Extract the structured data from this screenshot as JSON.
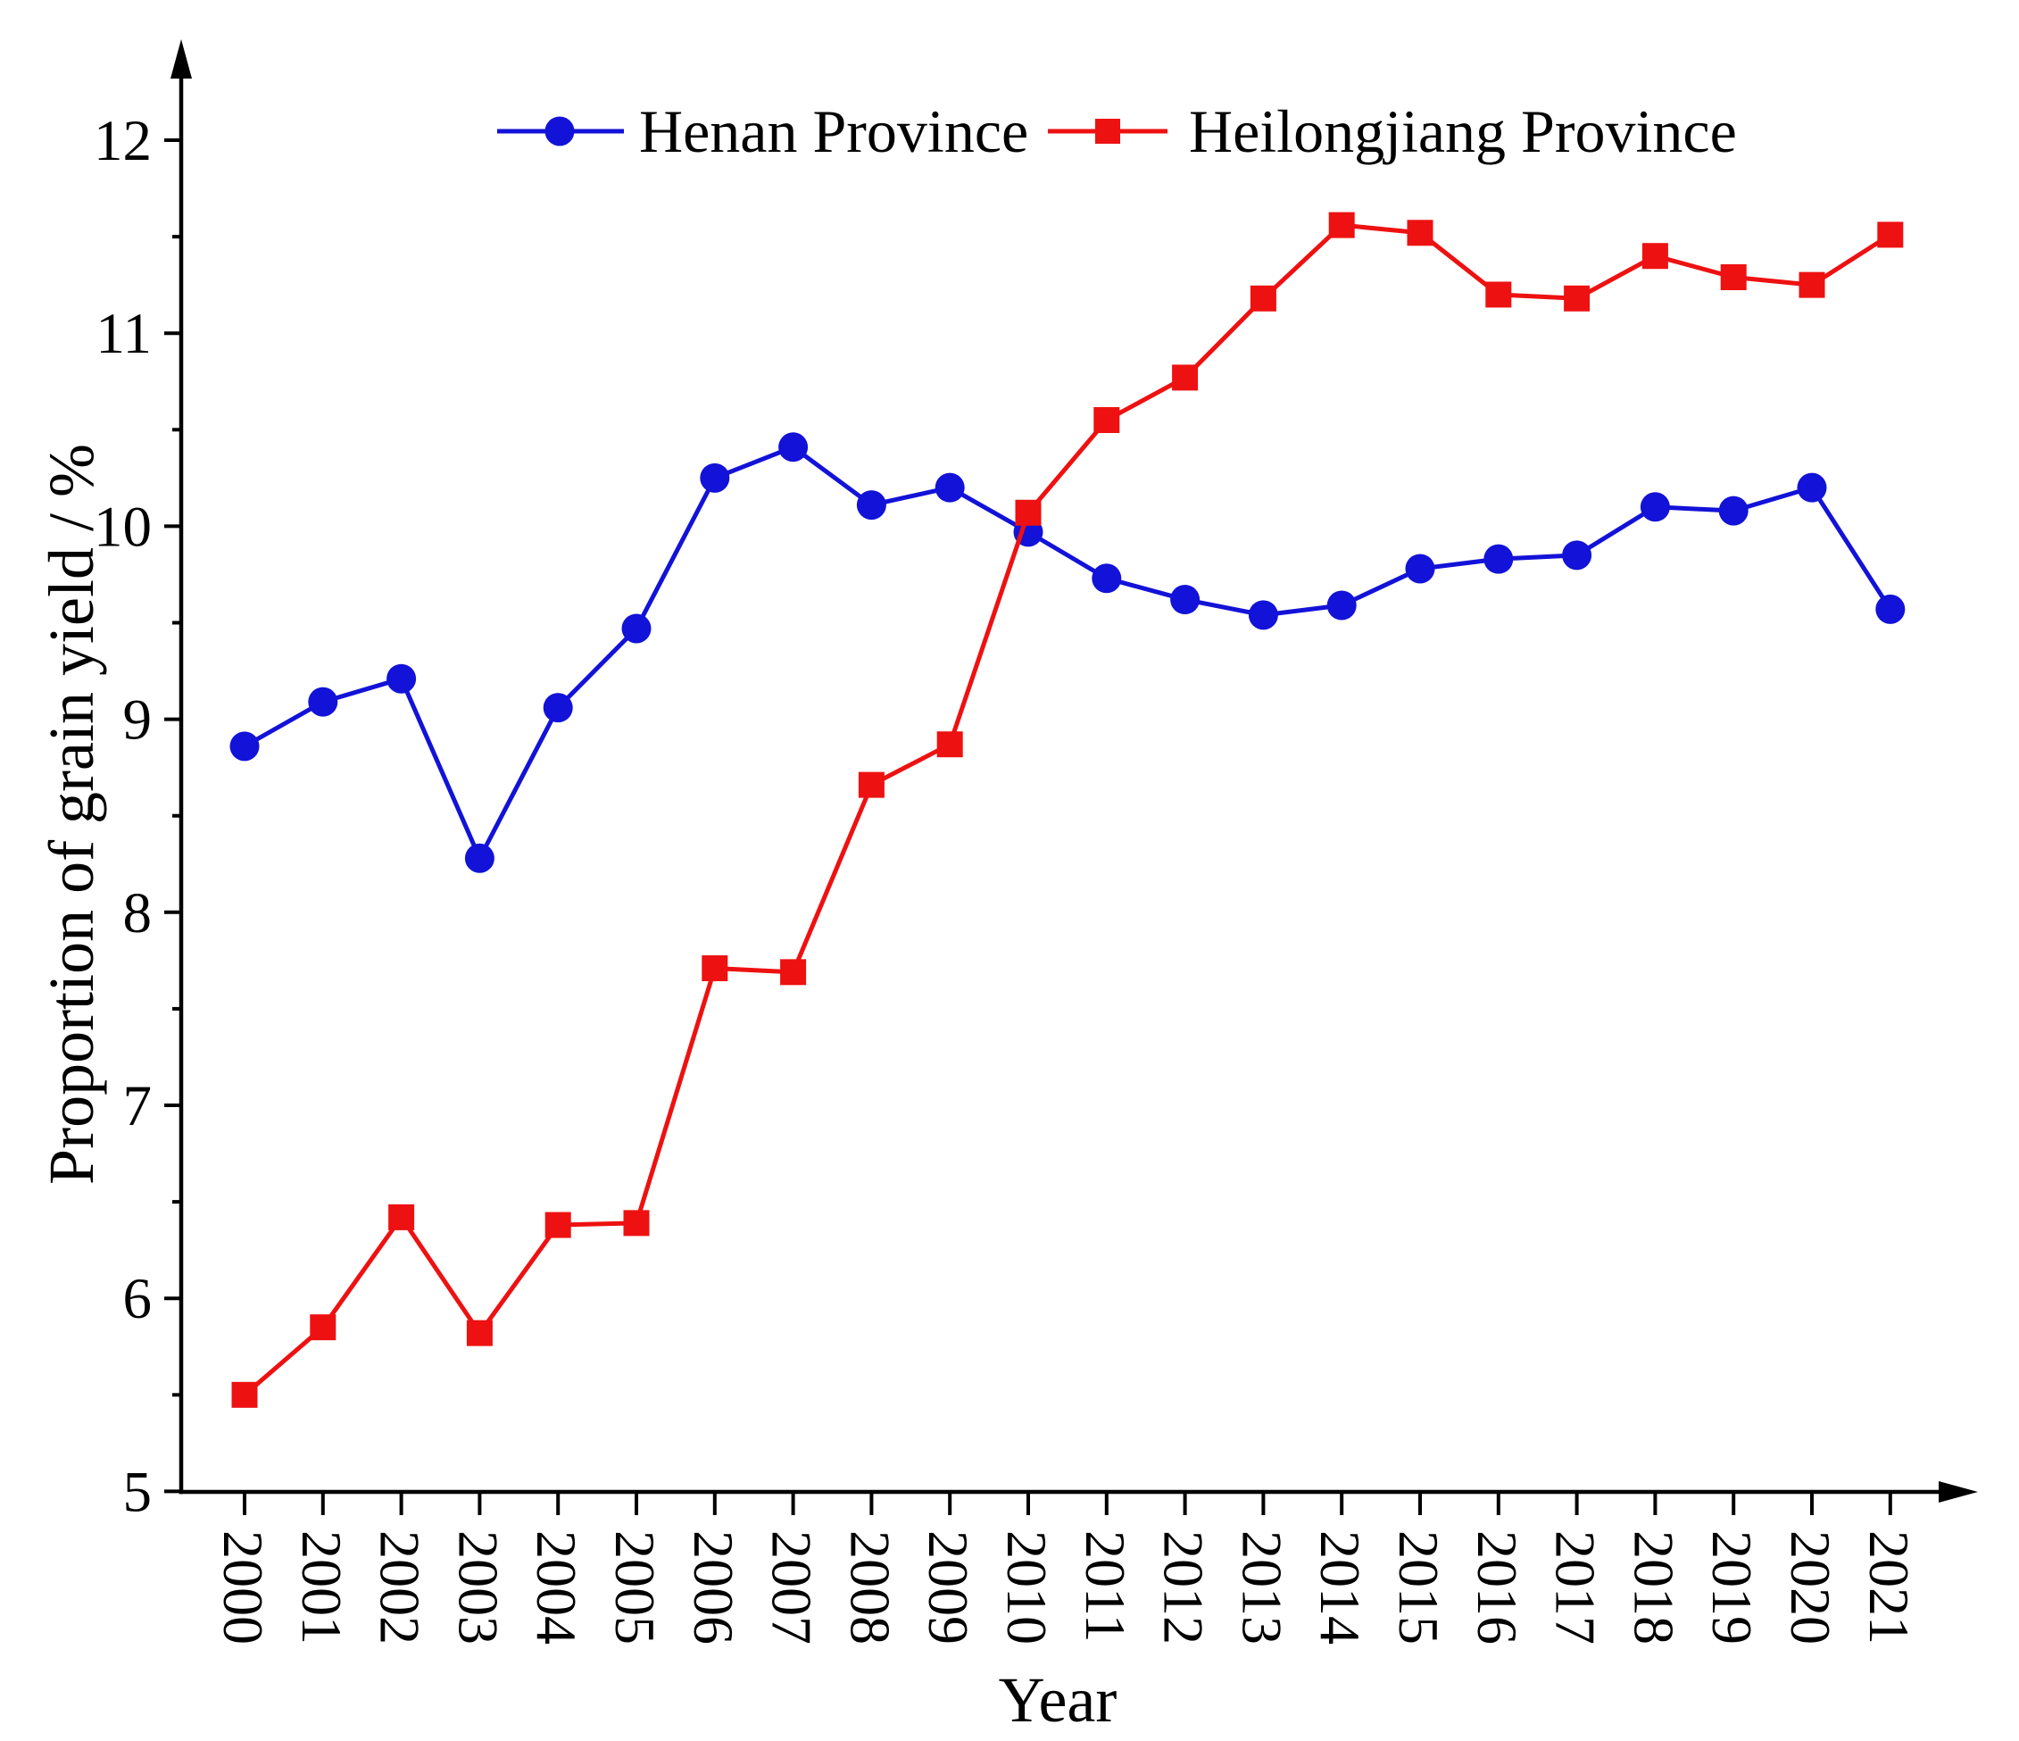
{
  "chart_data": {
    "type": "line",
    "title": "",
    "xlabel": "Year",
    "ylabel": "Proportion of grain yield / %",
    "x": [
      2000,
      2001,
      2002,
      2003,
      2004,
      2005,
      2006,
      2007,
      2008,
      2009,
      2010,
      2011,
      2012,
      2013,
      2014,
      2015,
      2016,
      2017,
      2018,
      2019,
      2020,
      2021
    ],
    "ylim": [
      5,
      12
    ],
    "ytick_major_step": 1,
    "ytick_minor_step": 0.5,
    "ytick_labels": [
      "5",
      "6",
      "7",
      "8",
      "9",
      "10",
      "11",
      "12"
    ],
    "grid": false,
    "legend_position": "top-center",
    "axis_color": "#000000",
    "series": [
      {
        "name": "Henan Province",
        "color": "#1212d8",
        "marker": "circle",
        "values": [
          8.86,
          9.09,
          9.21,
          8.28,
          9.06,
          9.47,
          10.25,
          10.41,
          10.11,
          10.2,
          9.97,
          9.73,
          9.62,
          9.54,
          9.59,
          9.78,
          9.83,
          9.85,
          10.1,
          10.08,
          10.2,
          9.57
        ]
      },
      {
        "name": "Heilongjiang Province",
        "color": "#ee1111",
        "marker": "square",
        "values": [
          5.5,
          5.85,
          6.42,
          5.82,
          6.38,
          6.39,
          7.71,
          7.69,
          8.66,
          8.87,
          10.07,
          10.55,
          10.77,
          11.18,
          11.56,
          11.52,
          11.2,
          11.18,
          11.4,
          11.29,
          11.25,
          11.51
        ]
      }
    ]
  }
}
